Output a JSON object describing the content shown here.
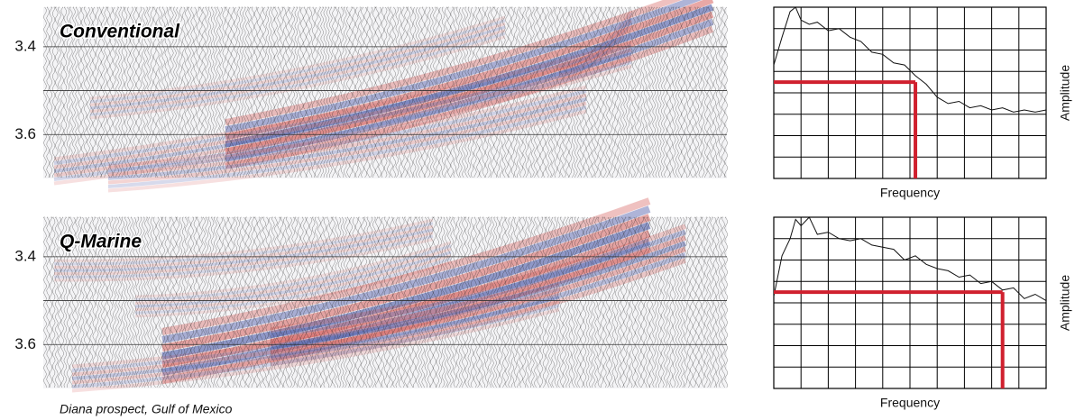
{
  "caption": "Diana prospect, Gulf of Mexico",
  "chart_data": [
    {
      "type": "seismic",
      "title": "Conventional",
      "ylim": [
        3.31,
        3.7
      ],
      "yticks": [
        3.4,
        3.6
      ],
      "ygrid": [
        3.4,
        3.5,
        3.6
      ]
    },
    {
      "type": "line",
      "xlabel": "Frequency",
      "ylabel": "Amplitude",
      "xlim": [
        0,
        10
      ],
      "ylim": [
        0,
        8
      ],
      "grid_divisions": [
        10,
        8
      ],
      "color": "#111111",
      "x": [
        0,
        0.3,
        0.6,
        0.8,
        1.0,
        1.3,
        1.6,
        2.0,
        2.4,
        2.8,
        3.2,
        3.6,
        4.0,
        4.4,
        4.8,
        5.2,
        5.6,
        6.0,
        6.4,
        6.8,
        7.2,
        7.6,
        8.0,
        8.4,
        8.8,
        9.2,
        9.6,
        10
      ],
      "values": [
        5.3,
        6.6,
        7.8,
        8.0,
        7.4,
        7.2,
        7.3,
        6.9,
        7.0,
        6.6,
        6.4,
        5.9,
        5.8,
        5.4,
        5.3,
        4.8,
        4.4,
        3.8,
        3.5,
        3.6,
        3.3,
        3.4,
        3.2,
        3.3,
        3.1,
        3.2,
        3.1,
        3.2
      ],
      "marker": {
        "frequency": 5.2,
        "amplitude": 4.5,
        "color": "#d0202e"
      }
    },
    {
      "type": "seismic",
      "title": "Q-Marine",
      "ylim": [
        3.31,
        3.7
      ],
      "yticks": [
        3.4,
        3.6
      ],
      "ygrid": [
        3.4,
        3.5,
        3.6
      ]
    },
    {
      "type": "line",
      "xlabel": "Frequency",
      "ylabel": "Amplitude",
      "xlim": [
        0,
        10
      ],
      "ylim": [
        0,
        8
      ],
      "grid_divisions": [
        10,
        8
      ],
      "color": "#111111",
      "x": [
        0,
        0.3,
        0.6,
        0.8,
        1.0,
        1.3,
        1.6,
        2.0,
        2.4,
        2.8,
        3.2,
        3.6,
        4.0,
        4.4,
        4.8,
        5.2,
        5.6,
        6.0,
        6.4,
        6.8,
        7.2,
        7.6,
        8.0,
        8.4,
        8.8,
        9.2,
        9.6,
        10
      ],
      "values": [
        4.3,
        6.2,
        7.0,
        7.9,
        7.6,
        8.0,
        7.2,
        7.3,
        7.0,
        6.9,
        7.0,
        6.7,
        6.6,
        6.5,
        6.0,
        6.2,
        5.8,
        5.6,
        5.5,
        5.2,
        5.3,
        4.9,
        5.0,
        4.6,
        4.7,
        4.2,
        4.4,
        4.1
      ],
      "marker": {
        "frequency": 8.4,
        "amplitude": 4.5,
        "color": "#d0202e"
      }
    }
  ]
}
